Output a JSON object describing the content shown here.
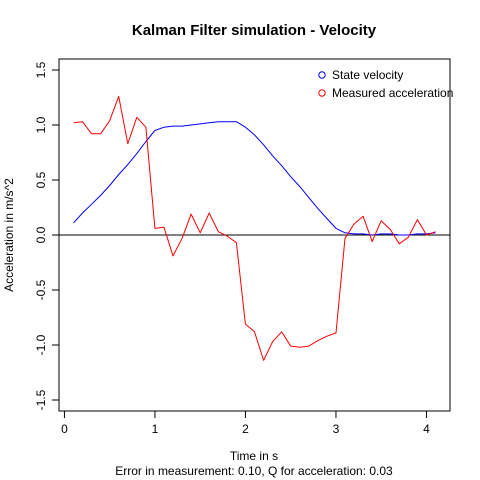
{
  "chart_data": {
    "type": "line",
    "title": "Kalman Filter simulation - Velocity",
    "xlabel": "Time in s",
    "ylabel": "Acceleration in m/s^2",
    "subtitle": "Error in measurement: 0.10, Q for acceleration: 0.03",
    "xlim": [
      -0.06,
      4.26
    ],
    "ylim": [
      -1.6,
      1.6
    ],
    "xticks": [
      0,
      1,
      2,
      3,
      4
    ],
    "yticks": [
      -1.5,
      -1.0,
      -0.5,
      0.0,
      0.5,
      1.0,
      1.5
    ],
    "ytick_labels": [
      "-1.5",
      "-1.0",
      "-0.5",
      "0.0",
      "0.5",
      "1.0",
      "1.5"
    ],
    "zero_line": true,
    "grid": false,
    "legend_position": "top-right",
    "series": [
      {
        "name": "State velocity",
        "color": "#0000ff",
        "x": [
          0.1,
          0.2,
          0.3,
          0.4,
          0.5,
          0.6,
          0.7,
          0.8,
          0.9,
          1.0,
          1.1,
          1.2,
          1.3,
          1.4,
          1.5,
          1.6,
          1.7,
          1.8,
          1.9,
          2.0,
          2.1,
          2.2,
          2.3,
          2.4,
          2.5,
          2.6,
          2.7,
          2.8,
          2.9,
          3.0,
          3.1,
          3.2,
          3.3,
          3.4,
          3.5,
          3.6,
          3.7,
          3.8,
          3.9,
          4.0,
          4.1
        ],
        "y": [
          0.11,
          0.2,
          0.28,
          0.36,
          0.45,
          0.55,
          0.64,
          0.74,
          0.85,
          0.95,
          0.98,
          0.99,
          0.99,
          1.0,
          1.01,
          1.02,
          1.03,
          1.03,
          1.03,
          0.98,
          0.91,
          0.82,
          0.72,
          0.63,
          0.53,
          0.44,
          0.34,
          0.24,
          0.15,
          0.06,
          0.02,
          0.01,
          0.01,
          0.0,
          0.01,
          0.01,
          0.0,
          0.0,
          0.01,
          0.01,
          0.02
        ]
      },
      {
        "name": "Measured acceleration",
        "color": "#ff0000",
        "x": [
          0.1,
          0.2,
          0.3,
          0.4,
          0.5,
          0.6,
          0.7,
          0.8,
          0.9,
          1.0,
          1.1,
          1.2,
          1.3,
          1.4,
          1.5,
          1.6,
          1.7,
          1.8,
          1.9,
          2.0,
          2.1,
          2.2,
          2.3,
          2.4,
          2.5,
          2.6,
          2.7,
          2.8,
          2.9,
          3.0,
          3.1,
          3.2,
          3.3,
          3.4,
          3.5,
          3.6,
          3.7,
          3.8,
          3.9,
          4.0,
          4.1
        ],
        "y": [
          1.02,
          1.03,
          0.92,
          0.92,
          1.04,
          1.26,
          0.83,
          1.07,
          0.98,
          0.06,
          0.07,
          -0.19,
          -0.03,
          0.19,
          0.02,
          0.2,
          0.03,
          -0.01,
          -0.07,
          -0.81,
          -0.88,
          -1.14,
          -0.97,
          -0.88,
          -1.01,
          -1.02,
          -1.01,
          -0.96,
          -0.92,
          -0.89,
          -0.03,
          0.1,
          0.17,
          -0.06,
          0.13,
          0.05,
          -0.08,
          -0.02,
          0.14,
          0.0,
          0.03
        ]
      }
    ]
  }
}
